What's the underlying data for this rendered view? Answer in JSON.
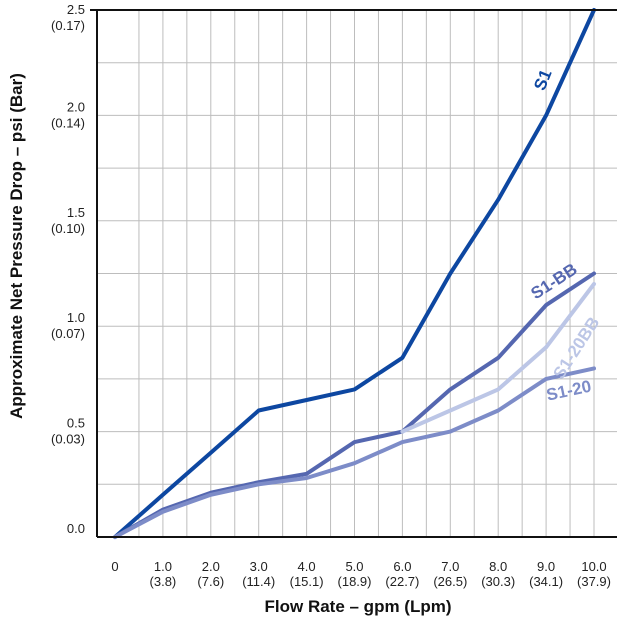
{
  "chart_data": {
    "type": "line",
    "xlabel": "Flow Rate – gpm (Lpm)",
    "ylabel": "Approximate Net Pressure Drop – psi (Bar)",
    "xlim": [
      0,
      10
    ],
    "ylim": [
      0,
      2.5
    ],
    "grid": true,
    "x_ticks": [
      {
        "v": 0,
        "l1": "0",
        "l2": ""
      },
      {
        "v": 1,
        "l1": "1.0",
        "l2": "(3.8)"
      },
      {
        "v": 2,
        "l1": "2.0",
        "l2": "(7.6)"
      },
      {
        "v": 3,
        "l1": "3.0",
        "l2": "(11.4)"
      },
      {
        "v": 4,
        "l1": "4.0",
        "l2": "(15.1)"
      },
      {
        "v": 5,
        "l1": "5.0",
        "l2": "(18.9)"
      },
      {
        "v": 6,
        "l1": "6.0",
        "l2": "(22.7)"
      },
      {
        "v": 7,
        "l1": "7.0",
        "l2": "(26.5)"
      },
      {
        "v": 8,
        "l1": "8.0",
        "l2": "(30.3)"
      },
      {
        "v": 9,
        "l1": "9.0",
        "l2": "(34.1)"
      },
      {
        "v": 10,
        "l1": "10.0",
        "l2": "(37.9)"
      }
    ],
    "y_ticks": [
      {
        "v": 0,
        "l1": "0.0",
        "l2": ""
      },
      {
        "v": 0.5,
        "l1": "0.5",
        "l2": "(0.03)"
      },
      {
        "v": 1.0,
        "l1": "1.0",
        "l2": "(0.07)"
      },
      {
        "v": 1.5,
        "l1": "1.5",
        "l2": "(0.10)"
      },
      {
        "v": 2.0,
        "l1": "2.0",
        "l2": "(0.14)"
      },
      {
        "v": 2.5,
        "l1": "2.5",
        "l2": "(0.17)"
      }
    ],
    "series": [
      {
        "name": "S1",
        "color": "#0d47a1",
        "x": [
          0,
          1,
          2,
          3,
          4,
          5,
          6,
          7,
          8,
          9,
          10
        ],
        "y": [
          0,
          0.2,
          0.4,
          0.6,
          0.65,
          0.7,
          0.85,
          1.25,
          1.6,
          2.0,
          2.5
        ]
      },
      {
        "name": "S1-BB",
        "color": "#5567b0",
        "x": [
          0,
          1,
          2,
          3,
          4,
          5,
          6,
          7,
          8,
          9,
          10
        ],
        "y": [
          0,
          0.13,
          0.21,
          0.26,
          0.3,
          0.45,
          0.5,
          0.7,
          0.85,
          1.1,
          1.25
        ]
      },
      {
        "name": "S1-20BB",
        "color": "#bcc6e6",
        "x": [
          6,
          7,
          8,
          9,
          10
        ],
        "y": [
          0.5,
          0.6,
          0.7,
          0.9,
          1.2
        ]
      },
      {
        "name": "S1-20",
        "color": "#7d8cc8",
        "x": [
          0,
          1,
          2,
          3,
          4,
          5,
          6,
          7,
          8,
          9,
          10
        ],
        "y": [
          0,
          0.12,
          0.2,
          0.25,
          0.28,
          0.35,
          0.45,
          0.5,
          0.6,
          0.75,
          0.8
        ]
      }
    ]
  }
}
